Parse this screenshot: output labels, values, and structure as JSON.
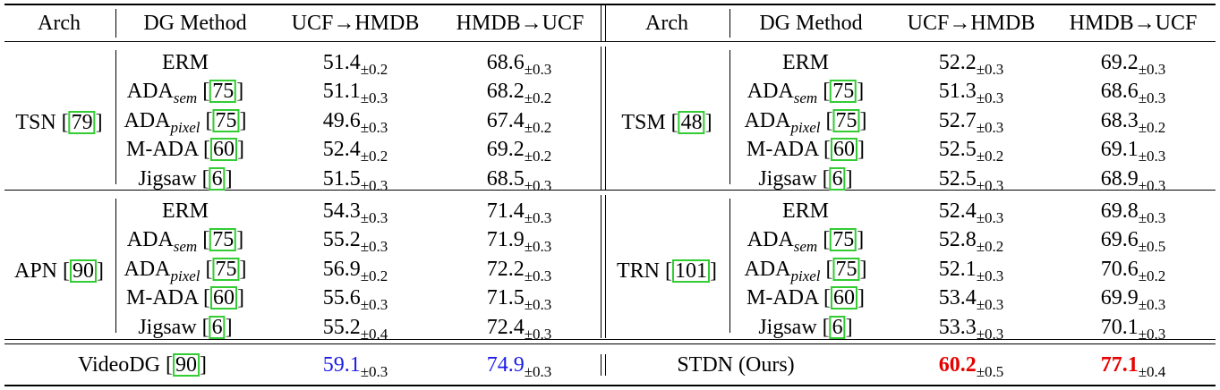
{
  "headers": [
    "Arch",
    "DG Method",
    "UCF→HMDB",
    "HMDB→UCF"
  ],
  "sign": "±",
  "blocks": [
    {
      "left": {
        "arch": "TSN",
        "arch_ref": "79",
        "rows": [
          {
            "method": "ERM",
            "sub": "",
            "ref": "",
            "v1": "51.4",
            "e1": "0.2",
            "v2": "68.6",
            "e2": "0.3"
          },
          {
            "method": "ADA",
            "sub": "sem",
            "ref": "75",
            "v1": "51.1",
            "e1": "0.3",
            "v2": "68.2",
            "e2": "0.2"
          },
          {
            "method": "ADA",
            "sub": "pixel",
            "ref": "75",
            "v1": "49.6",
            "e1": "0.3",
            "v2": "67.4",
            "e2": "0.2"
          },
          {
            "method": "M-ADA",
            "sub": "",
            "ref": "60",
            "v1": "52.4",
            "e1": "0.2",
            "v2": "69.2",
            "e2": "0.2"
          },
          {
            "method": "Jigsaw",
            "sub": "",
            "ref": "6",
            "v1": "51.5",
            "e1": "0.3",
            "v2": "68.5",
            "e2": "0.3"
          }
        ]
      },
      "right": {
        "arch": "TSM",
        "arch_ref": "48",
        "rows": [
          {
            "method": "ERM",
            "sub": "",
            "ref": "",
            "v1": "52.2",
            "e1": "0.3",
            "v2": "69.2",
            "e2": "0.3"
          },
          {
            "method": "ADA",
            "sub": "sem",
            "ref": "75",
            "v1": "51.3",
            "e1": "0.3",
            "v2": "68.6",
            "e2": "0.3"
          },
          {
            "method": "ADA",
            "sub": "pixel",
            "ref": "75",
            "v1": "52.7",
            "e1": "0.3",
            "v2": "68.3",
            "e2": "0.2"
          },
          {
            "method": "M-ADA",
            "sub": "",
            "ref": "60",
            "v1": "52.5",
            "e1": "0.2",
            "v2": "69.1",
            "e2": "0.3"
          },
          {
            "method": "Jigsaw",
            "sub": "",
            "ref": "6",
            "v1": "52.5",
            "e1": "0.3",
            "v2": "68.9",
            "e2": "0.3"
          }
        ]
      }
    },
    {
      "left": {
        "arch": "APN",
        "arch_ref": "90",
        "rows": [
          {
            "method": "ERM",
            "sub": "",
            "ref": "",
            "v1": "54.3",
            "e1": "0.3",
            "v2": "71.4",
            "e2": "0.3"
          },
          {
            "method": "ADA",
            "sub": "sem",
            "ref": "75",
            "v1": "55.2",
            "e1": "0.3",
            "v2": "71.9",
            "e2": "0.3"
          },
          {
            "method": "ADA",
            "sub": "pixel",
            "ref": "75",
            "v1": "56.9",
            "e1": "0.2",
            "v2": "72.2",
            "e2": "0.3"
          },
          {
            "method": "M-ADA",
            "sub": "",
            "ref": "60",
            "v1": "55.6",
            "e1": "0.3",
            "v2": "71.5",
            "e2": "0.3"
          },
          {
            "method": "Jigsaw",
            "sub": "",
            "ref": "6",
            "v1": "55.2",
            "e1": "0.4",
            "v2": "72.4",
            "e2": "0.3"
          }
        ]
      },
      "right": {
        "arch": "TRN",
        "arch_ref": "101",
        "rows": [
          {
            "method": "ERM",
            "sub": "",
            "ref": "",
            "v1": "52.4",
            "e1": "0.3",
            "v2": "69.8",
            "e2": "0.3"
          },
          {
            "method": "ADA",
            "sub": "sem",
            "ref": "75",
            "v1": "52.8",
            "e1": "0.2",
            "v2": "69.6",
            "e2": "0.5"
          },
          {
            "method": "ADA",
            "sub": "pixel",
            "ref": "75",
            "v1": "52.1",
            "e1": "0.3",
            "v2": "70.6",
            "e2": "0.2"
          },
          {
            "method": "M-ADA",
            "sub": "",
            "ref": "60",
            "v1": "53.4",
            "e1": "0.3",
            "v2": "69.9",
            "e2": "0.3"
          },
          {
            "method": "Jigsaw",
            "sub": "",
            "ref": "6",
            "v1": "53.3",
            "e1": "0.3",
            "v2": "70.1",
            "e2": "0.3"
          }
        ]
      }
    }
  ],
  "footer": {
    "left": {
      "label": "VideoDG",
      "ref": "90",
      "v1": "59.1",
      "e1": "0.3",
      "v2": "74.9",
      "e2": "0.3",
      "color": "#1a1ae6"
    },
    "right": {
      "label": "STDN (Ours)",
      "ref": "",
      "v1": "60.2",
      "e1": "0.5",
      "v2": "77.1",
      "e2": "0.4",
      "color": "#e60000"
    }
  }
}
